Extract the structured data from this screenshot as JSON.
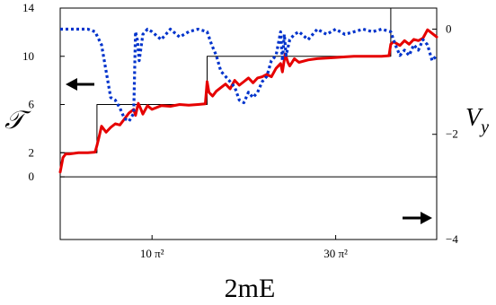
{
  "chart_data": {
    "type": "line",
    "xlabel": "2mE",
    "ylabel_left": "𝒯",
    "ylabel_right": "V",
    "ylabel_right_subscript": "y",
    "x_ticks": [
      {
        "value": 10,
        "label": "10 π²"
      },
      {
        "value": 30,
        "label": "30 π²"
      }
    ],
    "left_ticks": [
      0,
      2,
      6,
      10,
      14
    ],
    "right_ticks": [
      0,
      -2,
      -4
    ],
    "xlim": [
      0,
      41
    ],
    "ylim_left": [
      -5.2,
      14
    ],
    "ylim_right": [
      -4,
      0.4
    ],
    "arrows": [
      {
        "name": "left-axis-arrow",
        "direction": "left",
        "axis": "left"
      },
      {
        "name": "right-axis-arrow",
        "direction": "right",
        "axis": "right"
      }
    ],
    "series": [
      {
        "axis": "left",
        "color": "#000000",
        "style": "thin-solid",
        "x": [
          0,
          0,
          4.0,
          4.0,
          16.0,
          16.0,
          36.0,
          36.0,
          41
        ],
        "y": [
          0,
          2,
          2,
          6,
          6,
          10,
          10,
          14,
          14
        ]
      },
      {
        "axis": "left",
        "color": "#e60000",
        "style": "thick-solid",
        "x": [
          0,
          0.3,
          0.6,
          1,
          2,
          3,
          3.8,
          4.0,
          4.2,
          4.5,
          5,
          5.5,
          6,
          6.5,
          7,
          7.5,
          8,
          8.2,
          8.5,
          8.8,
          9,
          9.5,
          10,
          11,
          12,
          13,
          14,
          15,
          15.8,
          16.0,
          16.2,
          16.6,
          17,
          17.5,
          18,
          18.5,
          19,
          19.5,
          20,
          20.5,
          21,
          21.5,
          22,
          22.5,
          23,
          23.5,
          24,
          24.2,
          24.5,
          24.8,
          25,
          25.5,
          26,
          27,
          28,
          29,
          30,
          31,
          32,
          33,
          34,
          35,
          35.8,
          36.0,
          36.3,
          37,
          37.5,
          38,
          38.5,
          39,
          39.5,
          40,
          40.5,
          41
        ],
        "y": [
          0.4,
          1.6,
          1.9,
          1.9,
          2.0,
          2.0,
          2.05,
          2.6,
          3.2,
          4.2,
          3.7,
          4.1,
          4.4,
          4.3,
          4.8,
          5.3,
          5.6,
          5.1,
          6.1,
          5.6,
          5.2,
          5.9,
          5.6,
          5.9,
          5.85,
          6.0,
          5.95,
          6.0,
          6.05,
          7.9,
          7.0,
          6.7,
          7.1,
          7.4,
          7.7,
          7.3,
          8.0,
          7.6,
          7.9,
          8.2,
          7.8,
          8.2,
          8.3,
          8.5,
          8.3,
          9.0,
          9.4,
          8.7,
          10.2,
          9.5,
          9.2,
          9.8,
          9.5,
          9.7,
          9.8,
          9.85,
          9.9,
          9.95,
          10.0,
          10.0,
          10.0,
          10.0,
          10.05,
          11.0,
          11.2,
          10.9,
          11.3,
          11.0,
          11.4,
          11.3,
          11.5,
          12.2,
          11.9,
          11.6
        ]
      },
      {
        "axis": "right",
        "color": "#0033cc",
        "style": "thick-dotted",
        "x": [
          0,
          1,
          2,
          3,
          3.8,
          4.5,
          5,
          5.5,
          6,
          6.5,
          7,
          7.5,
          8,
          8.2,
          8.4,
          8.6,
          9,
          9.5,
          10,
          11,
          12,
          13,
          14,
          15,
          16,
          16.5,
          17,
          17.5,
          18,
          18.5,
          19,
          19.5,
          20,
          20.5,
          21,
          21.5,
          22,
          22.5,
          23,
          23.5,
          24,
          24.2,
          24.4,
          24.6,
          25,
          25.5,
          26,
          27,
          28,
          29,
          30,
          31,
          32,
          33,
          34,
          35,
          36,
          36.5,
          37,
          37.5,
          38,
          38.5,
          39,
          39.5,
          40,
          40.5,
          41
        ],
        "y": [
          0.0,
          0.0,
          0.0,
          0.0,
          -0.05,
          -0.3,
          -0.8,
          -1.3,
          -1.35,
          -1.5,
          -1.7,
          -1.75,
          -1.6,
          -0.05,
          -0.2,
          -0.6,
          -0.1,
          0.0,
          -0.05,
          -0.2,
          0.0,
          -0.15,
          -0.05,
          0.0,
          -0.05,
          -0.3,
          -0.5,
          -0.8,
          -0.9,
          -1.0,
          -1.1,
          -1.35,
          -1.4,
          -1.2,
          -1.3,
          -1.2,
          -1.0,
          -0.9,
          -0.6,
          -0.5,
          -0.05,
          -0.6,
          -0.1,
          -0.5,
          -0.2,
          -0.1,
          -0.05,
          -0.2,
          0.0,
          -0.1,
          0.0,
          -0.1,
          -0.05,
          0.0,
          -0.05,
          0.0,
          -0.05,
          -0.3,
          -0.5,
          -0.4,
          -0.5,
          -0.3,
          -0.4,
          -0.2,
          -0.3,
          -0.6,
          -0.5
        ]
      }
    ]
  }
}
